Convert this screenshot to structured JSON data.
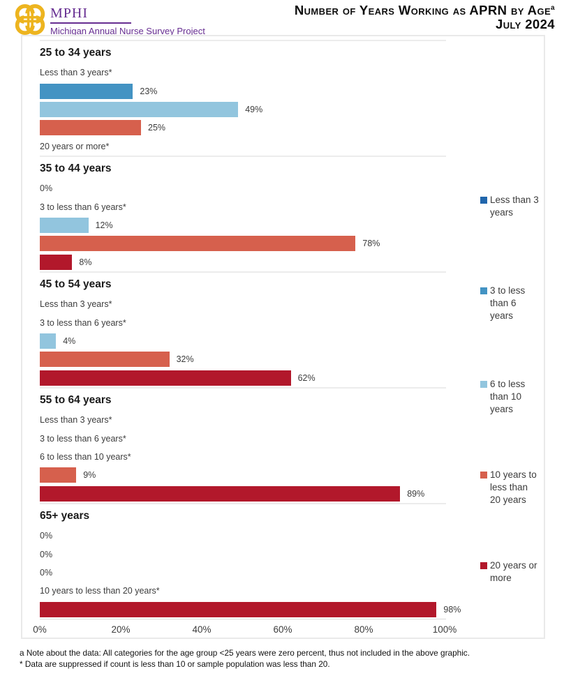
{
  "header": {
    "logo_acronym": "MPHI",
    "logo_subtitle": "Michigan Annual Nurse Survey Project",
    "title": "Number of Years Working as APRN by Age",
    "title_superscript": "a",
    "subtitle": "July 2024"
  },
  "chart_data": {
    "type": "bar",
    "orientation": "horizontal",
    "xlim": [
      0,
      100
    ],
    "x_ticks": [
      "0%",
      "20%",
      "40%",
      "60%",
      "80%",
      "100%"
    ],
    "grid": "group-separators-only",
    "legend_position": "right",
    "series": [
      {
        "name": "Less than 3 years",
        "color": "#2166ac"
      },
      {
        "name": "3 to less than 6 years",
        "color": "#4393c3"
      },
      {
        "name": "6 to less than 10 years",
        "color": "#92c5de"
      },
      {
        "name": "10 years to less than 20 years",
        "color": "#d6604d"
      },
      {
        "name": "20 years or more",
        "color": "#b2182b"
      }
    ],
    "legend_labels": [
      "Less than 3 years",
      "3 to less than 6 years",
      "6 to less than 10 years",
      "10 years to less than 20 years",
      "20 years or more"
    ],
    "groups": [
      {
        "label": "25 to 34 years",
        "items": [
          {
            "series": "Less than 3 years",
            "status": "suppressed",
            "value": null,
            "label": "Less than 3 years*"
          },
          {
            "series": "3 to less than 6 years",
            "status": "bar",
            "value": 23,
            "label": "23%",
            "color": "#4393c3"
          },
          {
            "series": "6 to less than 10 years",
            "status": "bar",
            "value": 49,
            "label": "49%",
            "color": "#92c5de"
          },
          {
            "series": "10 years to less than 20 years",
            "status": "bar",
            "value": 25,
            "label": "25%",
            "color": "#d6604d"
          },
          {
            "series": "20 years or more",
            "status": "suppressed",
            "value": null,
            "label": "20 years or more*"
          }
        ]
      },
      {
        "label": "35 to 44 years",
        "items": [
          {
            "series": "Less than 3 years",
            "status": "zero",
            "value": 0,
            "label": "0%"
          },
          {
            "series": "3 to less than 6 years",
            "status": "suppressed",
            "value": null,
            "label": "3 to less than 6 years*"
          },
          {
            "series": "6 to less than 10 years",
            "status": "bar",
            "value": 12,
            "label": "12%",
            "color": "#92c5de"
          },
          {
            "series": "10 years to less than 20 years",
            "status": "bar",
            "value": 78,
            "label": "78%",
            "color": "#d6604d"
          },
          {
            "series": "20 years or more",
            "status": "bar",
            "value": 8,
            "label": "8%",
            "color": "#b2182b"
          }
        ]
      },
      {
        "label": "45 to 54 years",
        "items": [
          {
            "series": "Less than 3 years",
            "status": "suppressed",
            "value": null,
            "label": "Less than 3 years*"
          },
          {
            "series": "3 to less than 6 years",
            "status": "suppressed",
            "value": null,
            "label": "3 to less than 6 years*"
          },
          {
            "series": "6 to less than 10 years",
            "status": "bar",
            "value": 4,
            "label": "4%",
            "color": "#92c5de"
          },
          {
            "series": "10 years to less than 20 years",
            "status": "bar",
            "value": 32,
            "label": "32%",
            "color": "#d6604d"
          },
          {
            "series": "20 years or more",
            "status": "bar",
            "value": 62,
            "label": "62%",
            "color": "#b2182b"
          }
        ]
      },
      {
        "label": "55 to 64 years",
        "items": [
          {
            "series": "Less than 3 years",
            "status": "suppressed",
            "value": null,
            "label": "Less than 3 years*"
          },
          {
            "series": "3 to less than 6 years",
            "status": "suppressed",
            "value": null,
            "label": "3 to less than 6 years*"
          },
          {
            "series": "6 to less than 10 years",
            "status": "suppressed",
            "value": null,
            "label": "6 to less than 10 years*"
          },
          {
            "series": "10 years to less than 20 years",
            "status": "bar",
            "value": 9,
            "label": "9%",
            "color": "#d6604d"
          },
          {
            "series": "20 years or more",
            "status": "bar",
            "value": 89,
            "label": "89%",
            "color": "#b2182b"
          }
        ]
      },
      {
        "label": "65+ years",
        "items": [
          {
            "series": "Less than 3 years",
            "status": "zero",
            "value": 0,
            "label": "0%"
          },
          {
            "series": "3 to less than 6 years",
            "status": "zero",
            "value": 0,
            "label": "0%"
          },
          {
            "series": "6 to less than 10 years",
            "status": "zero",
            "value": 0,
            "label": "0%"
          },
          {
            "series": "10 years to less than 20 years",
            "status": "suppressed",
            "value": null,
            "label": "10 years to less than 20 years*"
          },
          {
            "series": "20 years or more",
            "status": "bar",
            "value": 98,
            "label": "98%",
            "color": "#b2182b"
          }
        ]
      }
    ]
  },
  "footnotes": [
    "a Note about the data: All categories for the age group <25 years were zero percent, thus not included in the above graphic.",
    "* Data are suppressed if count is less than 10 or sample population was less than 20."
  ],
  "colors": {
    "brand_purple": "#662d91",
    "brand_gold": "#edb41f",
    "separator": "#ececec",
    "axis_line": "#d9d9d9",
    "text": "#3c3c3c"
  }
}
